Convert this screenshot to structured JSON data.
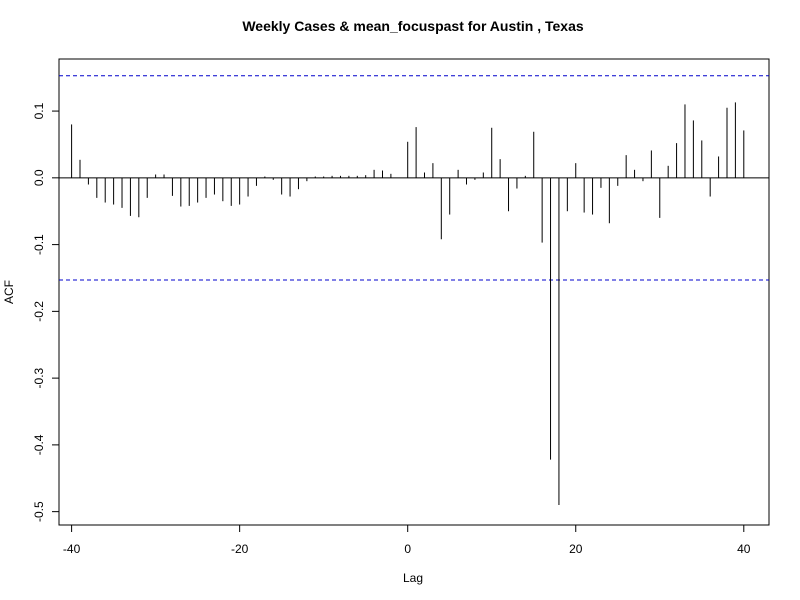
{
  "chart_data": {
    "type": "bar",
    "title": "Weekly Cases & mean_focuspast for Austin , Texas",
    "xlabel": "Lag",
    "ylabel": "ACF",
    "xlim": [
      -41.5,
      43
    ],
    "ylim": [
      -0.52,
      0.178
    ],
    "x_ticks": [
      -40,
      -20,
      0,
      20,
      40
    ],
    "y_ticks": [
      -0.5,
      -0.4,
      -0.3,
      -0.2,
      -0.1,
      0.0,
      0.1
    ],
    "y_tick_labels": [
      "-0.5",
      "-0.4",
      "-0.3",
      "-0.2",
      "-0.1",
      "0.0",
      "0.1"
    ],
    "confidence_limit": 0.153,
    "grid": false,
    "colors": {
      "bars": "#000000",
      "confidence": "#0000cc",
      "zero_line": "#000000"
    },
    "x": [
      -40,
      -39,
      -38,
      -37,
      -36,
      -35,
      -34,
      -33,
      -32,
      -31,
      -30,
      -29,
      -28,
      -27,
      -26,
      -25,
      -24,
      -23,
      -22,
      -21,
      -20,
      -19,
      -18,
      -17,
      -16,
      -15,
      -14,
      -13,
      -12,
      -11,
      -10,
      -9,
      -8,
      -7,
      -6,
      -5,
      -4,
      -3,
      -2,
      -1,
      0,
      1,
      2,
      3,
      4,
      5,
      6,
      7,
      8,
      9,
      10,
      11,
      12,
      13,
      14,
      15,
      16,
      17,
      18,
      19,
      20,
      21,
      22,
      23,
      24,
      25,
      26,
      27,
      28,
      29,
      30,
      31,
      32,
      33,
      34,
      35,
      36,
      37,
      38,
      39,
      40
    ],
    "values": [
      0.08,
      0.027,
      -0.01,
      -0.03,
      -0.037,
      -0.04,
      -0.045,
      -0.057,
      -0.059,
      -0.03,
      0.005,
      0.005,
      -0.027,
      -0.043,
      -0.042,
      -0.037,
      -0.03,
      -0.025,
      -0.035,
      -0.042,
      -0.04,
      -0.028,
      -0.012,
      0.002,
      -0.003,
      -0.025,
      -0.028,
      -0.017,
      -0.005,
      0.002,
      0.002,
      0.003,
      0.003,
      0.003,
      0.003,
      0.004,
      0.012,
      0.011,
      0.006,
      0.0,
      0.054,
      0.076,
      0.008,
      0.022,
      -0.092,
      -0.055,
      0.012,
      -0.01,
      -0.003,
      0.008,
      0.075,
      0.028,
      -0.05,
      -0.016,
      0.003,
      0.069,
      -0.097,
      -0.422,
      -0.49,
      -0.05,
      0.022,
      -0.052,
      -0.055,
      -0.015,
      -0.068,
      -0.012,
      0.034,
      0.012,
      -0.005,
      0.041,
      -0.06,
      0.018,
      0.052,
      0.11,
      0.086,
      0.056,
      -0.028,
      0.032,
      0.105,
      0.113,
      0.071
    ]
  }
}
